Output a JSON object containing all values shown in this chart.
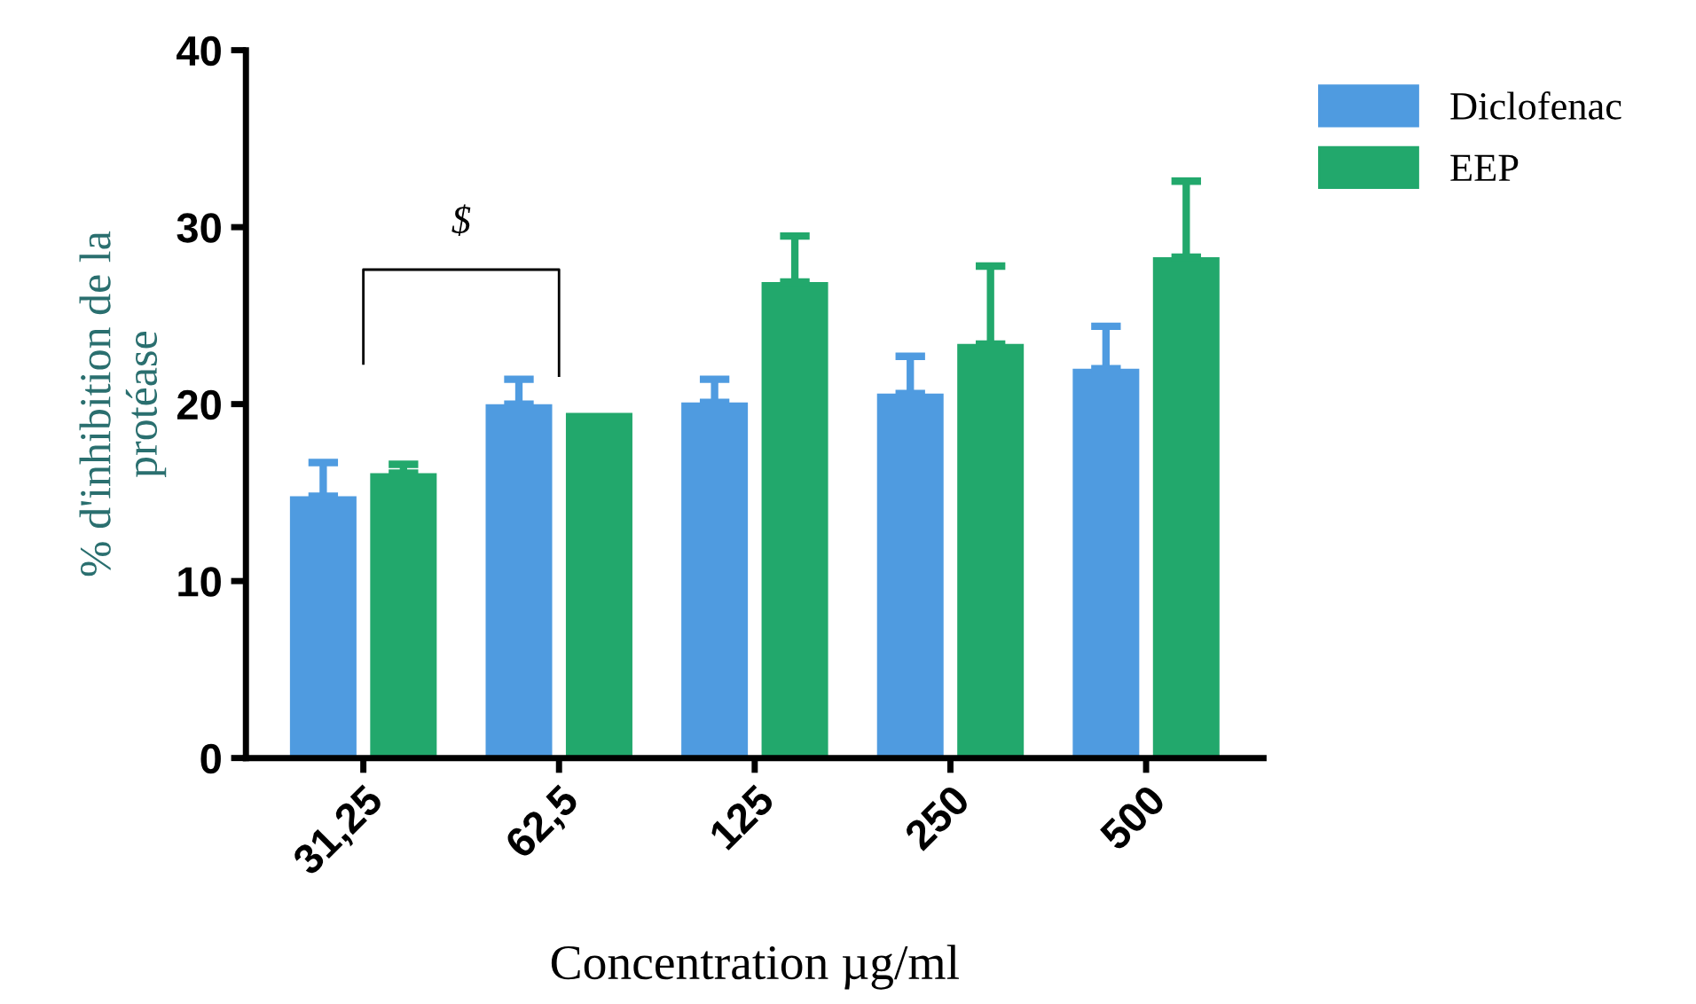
{
  "chart_data": {
    "type": "bar",
    "xlabel": "Concentration µg/ml",
    "ylabel": "% d'inhibition de la\nprotéase",
    "categories": [
      "31,25",
      "62,5",
      "125",
      "250",
      "500"
    ],
    "series": [
      {
        "name": "Diclofenac",
        "color": "#4f9be0",
        "values": [
          14.8,
          20.0,
          20.1,
          20.6,
          22.0
        ],
        "errors": [
          [
            14.8,
            16.7
          ],
          [
            20.0,
            21.4
          ],
          [
            20.1,
            21.4
          ],
          [
            20.6,
            22.7
          ],
          [
            22.0,
            24.4
          ]
        ]
      },
      {
        "name": "EEP",
        "color": "#22a86c",
        "values": [
          16.1,
          19.5,
          26.9,
          23.4,
          28.3
        ],
        "errors": [
          [
            16.1,
            16.6
          ],
          null,
          [
            26.9,
            29.5
          ],
          [
            23.4,
            27.8
          ],
          [
            28.3,
            32.6
          ]
        ]
      }
    ],
    "ylim": [
      0,
      40
    ],
    "yticks": [
      0,
      10,
      20,
      30,
      40
    ],
    "grid": false,
    "legend": "top right",
    "annotations": [
      "$"
    ]
  }
}
